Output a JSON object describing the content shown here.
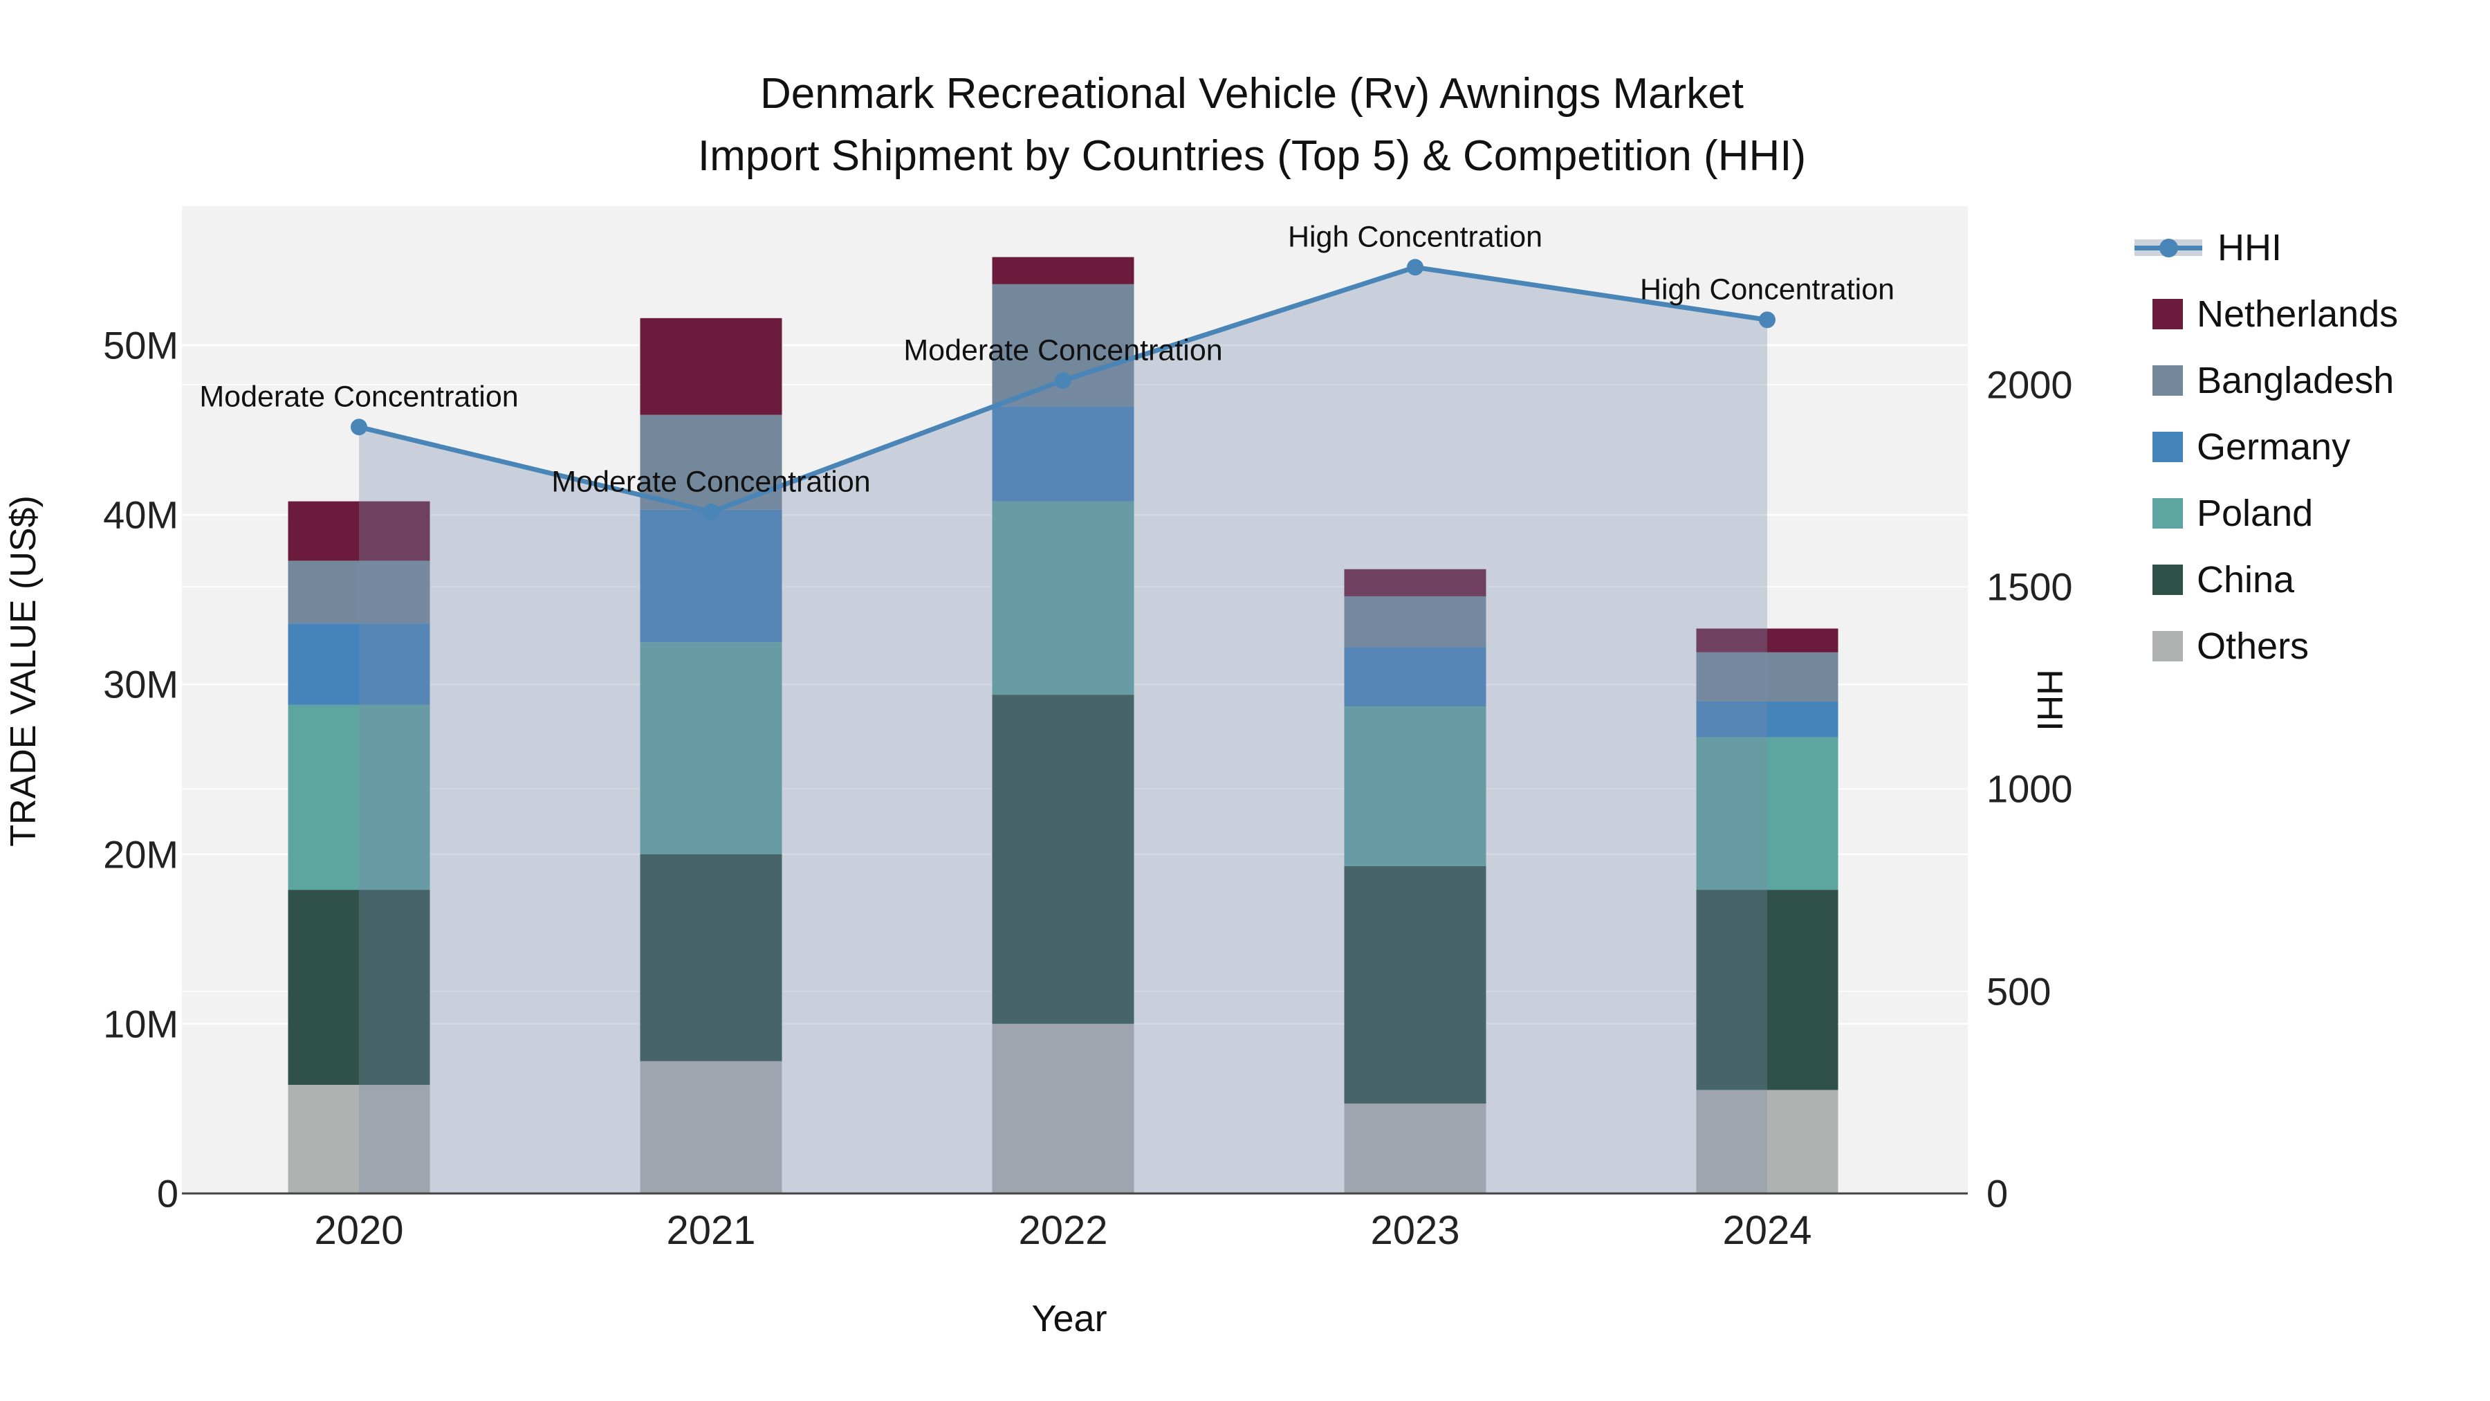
{
  "title": {
    "line1": "Denmark Recreational Vehicle (Rv) Awnings Market",
    "line2": "Import Shipment by Countries (Top 5) & Competition (HHI)"
  },
  "chart_data": {
    "type": "stacked-bar+line",
    "categories": [
      "2020",
      "2021",
      "2022",
      "2023",
      "2024"
    ],
    "values_unit": "M US$",
    "bar_series": [
      {
        "name": "Others",
        "color": "#b0b2b2",
        "values": [
          6.4,
          7.8,
          10.0,
          5.3,
          6.1
        ]
      },
      {
        "name": "China",
        "color": "#2f5148",
        "values": [
          11.5,
          12.2,
          19.4,
          14.0,
          11.8
        ]
      },
      {
        "name": "Poland",
        "color": "#5ea5a2",
        "values": [
          10.9,
          12.5,
          11.4,
          9.4,
          9.0
        ]
      },
      {
        "name": "Germany",
        "color": "#4583bb",
        "values": [
          4.8,
          7.8,
          5.6,
          3.5,
          2.1
        ]
      },
      {
        "name": "Bangladesh",
        "color": "#74889b",
        "values": [
          3.7,
          5.6,
          7.2,
          3.0,
          2.9
        ]
      },
      {
        "name": "Netherlands",
        "color": "#6b1b3c",
        "values": [
          3.5,
          5.7,
          1.6,
          1.6,
          1.4
        ]
      }
    ],
    "bar_totals": [
      40.8,
      51.6,
      55.2,
      36.8,
      33.3
    ],
    "line_series": {
      "name": "HHI",
      "color": "#4a85b8",
      "area_fill": "rgba(120,140,170,0.33)",
      "legend_band": "#cdd3dc",
      "values": [
        1895,
        1685,
        2010,
        2290,
        2160
      ]
    },
    "annotations": [
      {
        "category": "2020",
        "text": "Moderate Concentration"
      },
      {
        "category": "2021",
        "text": "Moderate Concentration"
      },
      {
        "category": "2022",
        "text": "Moderate Concentration"
      },
      {
        "category": "2023",
        "text": "High Concentration"
      },
      {
        "category": "2024",
        "text": "High Concentration"
      }
    ],
    "y_left": {
      "title": "TRADE VALUE (US$)",
      "ticks": [
        "0",
        "10M",
        "20M",
        "30M",
        "40M",
        "50M"
      ],
      "tick_values": [
        0,
        10,
        20,
        30,
        40,
        50
      ],
      "max": 58.2
    },
    "y_right": {
      "title": "HHI",
      "ticks": [
        "0",
        "500",
        "1000",
        "1500",
        "2000"
      ],
      "tick_values": [
        0,
        500,
        1000,
        1500,
        2000
      ],
      "max": 2441
    },
    "x_axis": {
      "title": "Year"
    },
    "legend": {
      "items": [
        "HHI",
        "Netherlands",
        "Bangladesh",
        "Germany",
        "Poland",
        "China",
        "Others"
      ]
    },
    "layout_hints": {
      "grid": "on",
      "legend_position": "right",
      "bar_opacity_under_area": "area drawn over bars"
    }
  },
  "colors": {
    "plot_bg": "#f2f2f3",
    "grid": "#ffffff",
    "axis_line": "#444444",
    "text": "#1a1a1a"
  }
}
